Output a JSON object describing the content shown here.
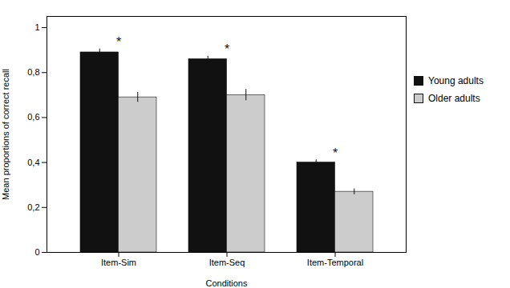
{
  "chart_data": {
    "type": "bar",
    "categories": [
      "Item-Sim",
      "Item-Seq",
      "Item-Temporal"
    ],
    "series": [
      {
        "name": "Young adults",
        "color": "#111111",
        "values": [
          0.89,
          0.86,
          0.4
        ],
        "errors": [
          0.015,
          0.013,
          0.012
        ]
      },
      {
        "name": "Older adults",
        "color": "#cccccc",
        "values": [
          0.69,
          0.7,
          0.27
        ],
        "errors": [
          0.022,
          0.025,
          0.013
        ]
      }
    ],
    "xlabel": "Conditions",
    "ylabel": "Mean proportions of correct recall",
    "ylim": [
      0,
      1.05
    ],
    "yticks": [
      0,
      {
        "value": 0.2,
        "label": "0,2"
      },
      {
        "value": 0.4,
        "label": "0,4"
      },
      {
        "value": 0.6,
        "label": "0,6"
      },
      {
        "value": 0.8,
        "label": "0,8"
      },
      1
    ],
    "annotations": [
      {
        "text": "*",
        "category": "Item-Sim"
      },
      {
        "text": "*",
        "category": "Item-Seq"
      },
      {
        "text": "*",
        "category": "Item-Temporal"
      }
    ],
    "grid": false,
    "legend": "right"
  }
}
